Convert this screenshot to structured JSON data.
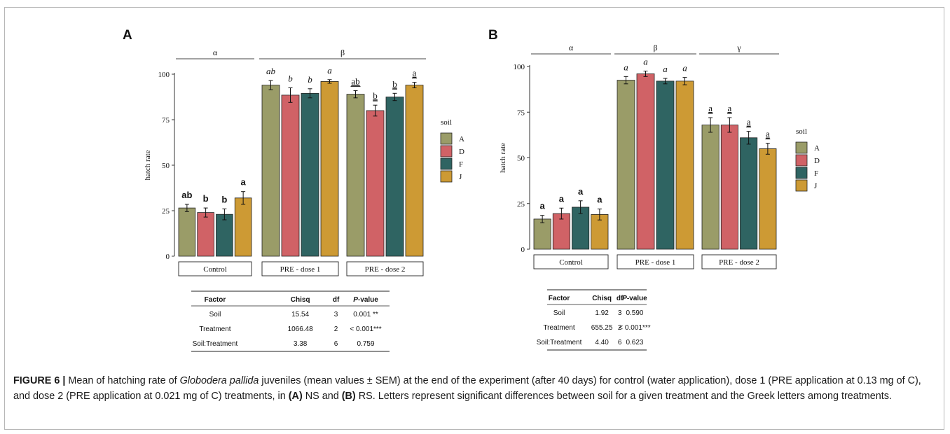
{
  "chart_data": [
    {
      "panel": "A",
      "type": "bar",
      "ylabel": "hatch rate",
      "ylim": [
        0,
        100
      ],
      "yticks": [
        0,
        25,
        50,
        75,
        100
      ],
      "legend": {
        "title": "soil",
        "entries": [
          "A",
          "D",
          "F",
          "J"
        ],
        "placement": "right"
      },
      "colors": {
        "A": "#9a9c68",
        "D": "#d06266",
        "F": "#2f6462",
        "J": "#cd9a34"
      },
      "facets": [
        {
          "label": "Control",
          "values": [
            26.5,
            24,
            23,
            32
          ],
          "errors": [
            2,
            2.5,
            3,
            3.5
          ],
          "letters": [
            "ab",
            "b",
            "b",
            "a"
          ],
          "letter_style": "bold"
        },
        {
          "label": "PRE - dose 1",
          "values": [
            94,
            88.5,
            89.5,
            96
          ],
          "errors": [
            2.5,
            4,
            2.5,
            1
          ],
          "letters": [
            "ab",
            "b",
            "b",
            "a"
          ],
          "letter_style": "italic"
        },
        {
          "label": "PRE - dose 2",
          "values": [
            89,
            80,
            87.5,
            94
          ],
          "errors": [
            2,
            3,
            2,
            1.5
          ],
          "letters": [
            "ab",
            "b",
            "b",
            "a"
          ],
          "letter_style": "underline"
        }
      ],
      "groups": [
        {
          "label": "α",
          "from": 0,
          "to": 0
        },
        {
          "label": "β",
          "from": 1,
          "to": 2
        }
      ],
      "table": {
        "headers": [
          "Factor",
          "Chisq",
          "df",
          "P-value"
        ],
        "rows": [
          [
            "Soil",
            "15.54",
            "3",
            "0.001 **"
          ],
          [
            "Treatment",
            "1066.48",
            "2",
            "< 0.001***"
          ],
          [
            "Soil:Treatment",
            "3.38",
            "6",
            "0.759"
          ]
        ]
      }
    },
    {
      "panel": "B",
      "type": "bar",
      "ylabel": "hatch rate",
      "ylim": [
        0,
        100
      ],
      "yticks": [
        0,
        25,
        50,
        75,
        100
      ],
      "legend": {
        "title": "soil",
        "entries": [
          "A",
          "D",
          "F",
          "J"
        ],
        "placement": "right"
      },
      "colors": {
        "A": "#9a9c68",
        "D": "#d06266",
        "F": "#2f6462",
        "J": "#cd9a34"
      },
      "facets": [
        {
          "label": "Control",
          "values": [
            16.5,
            19.5,
            23,
            19
          ],
          "errors": [
            2,
            3,
            3.5,
            3
          ],
          "letters": [
            "a",
            "a",
            "a",
            "a"
          ],
          "letter_style": "bold"
        },
        {
          "label": "PRE - dose 1",
          "values": [
            92.5,
            96,
            92,
            92
          ],
          "errors": [
            2,
            1.5,
            1.5,
            2
          ],
          "letters": [
            "a",
            "a",
            "a",
            "a"
          ],
          "letter_style": "italic"
        },
        {
          "label": "PRE - dose 2",
          "values": [
            68,
            68,
            61,
            55
          ],
          "errors": [
            4,
            4,
            3.5,
            3
          ],
          "letters": [
            "a",
            "a",
            "a",
            "a"
          ],
          "letter_style": "underline"
        }
      ],
      "groups": [
        {
          "label": "α",
          "from": 0,
          "to": 0
        },
        {
          "label": "β",
          "from": 1,
          "to": 1
        },
        {
          "label": "γ",
          "from": 2,
          "to": 2
        }
      ],
      "table": {
        "headers": [
          "Factor",
          "Chisq",
          "df",
          "P-value"
        ],
        "rows": [
          [
            "Soil",
            "1.92",
            "3",
            "0.590"
          ],
          [
            "Treatment",
            "655.25",
            "2",
            "< 0.001***"
          ],
          [
            "Soil:Treatment",
            "4.40",
            "6",
            "0.623"
          ]
        ]
      }
    }
  ],
  "caption": {
    "label": "FIGURE 6 |",
    "t1": " Mean of hatching rate of ",
    "species": "Globodera pallida",
    "t2": " juveniles (mean values ± SEM) at the end of the experiment (after 40 days) for control (water application), dose 1 (PRE application at 0.13 mg of C), and dose 2 (PRE application at 0.021 mg of C) treatments, in ",
    "refA": "(A)",
    "t3": " NS and ",
    "refB": "(B)",
    "t4": " RS. Letters represent significant differences between soil for a given treatment and the Greek letters among treatments."
  }
}
